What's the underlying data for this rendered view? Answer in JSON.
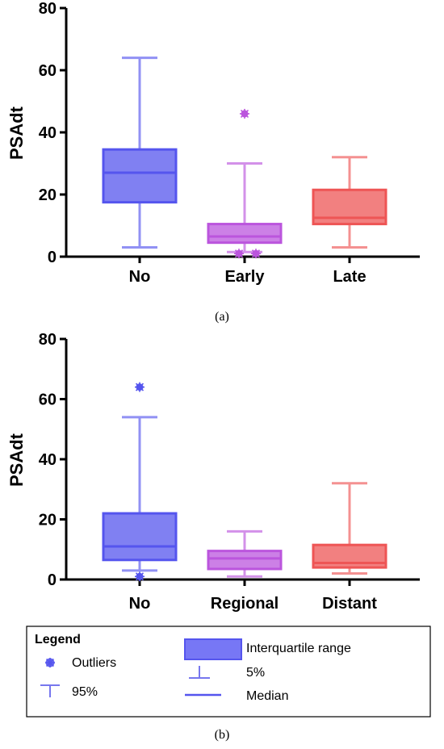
{
  "chart_data": [
    {
      "type": "box",
      "panel_label": "(a)",
      "ylabel": "PSAdt",
      "ylim": [
        0,
        80
      ],
      "yticks": [
        0,
        20,
        40,
        60,
        80
      ],
      "categories": [
        "No",
        "Early",
        "Late"
      ],
      "colors": [
        "#5555ee",
        "#bb55dd",
        "#ee5555"
      ],
      "boxes": [
        {
          "category": "No",
          "whisker_low": 3,
          "q1": 17.5,
          "median": 27,
          "q3": 34.5,
          "whisker_high": 64,
          "outliers": []
        },
        {
          "category": "Early",
          "whisker_low": 1.5,
          "q1": 4.5,
          "median": 6.5,
          "q3": 10.5,
          "whisker_high": 30,
          "outliers": [
            46,
            1,
            1
          ]
        },
        {
          "category": "Late",
          "whisker_low": 3,
          "q1": 10.5,
          "median": 12.5,
          "q3": 21.5,
          "whisker_high": 32,
          "outliers": []
        }
      ]
    },
    {
      "type": "box",
      "panel_label": "(b)",
      "ylabel": "PSAdt",
      "ylim": [
        0,
        80
      ],
      "yticks": [
        0,
        20,
        40,
        60,
        80
      ],
      "categories": [
        "No",
        "Regional",
        "Distant"
      ],
      "colors": [
        "#5555ee",
        "#bb55dd",
        "#ee5555"
      ],
      "boxes": [
        {
          "category": "No",
          "whisker_low": 3,
          "q1": 6.5,
          "median": 11,
          "q3": 22,
          "whisker_high": 54,
          "outliers": [
            64,
            1
          ]
        },
        {
          "category": "Regional",
          "whisker_low": 1,
          "q1": 3.5,
          "median": 7,
          "q3": 9.5,
          "whisker_high": 16,
          "outliers": []
        },
        {
          "category": "Distant",
          "whisker_low": 2,
          "q1": 4,
          "median": 5.5,
          "q3": 11.5,
          "whisker_high": 32,
          "outliers": []
        }
      ]
    }
  ],
  "legend": {
    "title": "Legend",
    "outliers": "Outliers",
    "p95": "95%",
    "iqr": "Interquartile range",
    "p5": "5%",
    "median": "Median",
    "color": "#5555ee"
  }
}
